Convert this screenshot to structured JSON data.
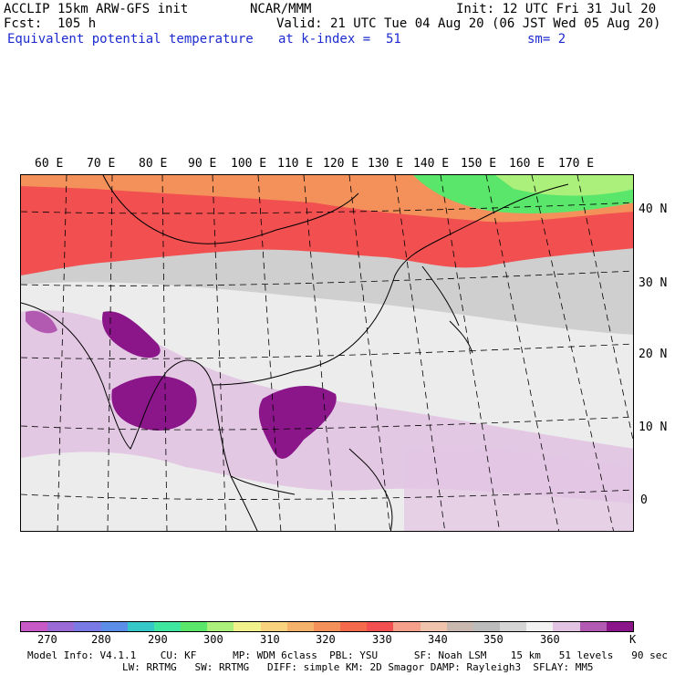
{
  "header": {
    "left": [
      "ACCLIP 15km ARW-GFS init",
      "Fcst:  105 h"
    ],
    "field": "Equivalent potential temperature",
    "center_top": "NCAR/MMM",
    "init": "Init: 12 UTC Fri 31 Jul 20",
    "valid": "Valid: 21 UTC Tue 04 Aug 20 (06 JST Wed 05 Aug 20)",
    "level": "at k-index =  51",
    "smooth": "sm= 2"
  },
  "map": {
    "lon_labels": [
      "60 E",
      "70 E",
      "80 E",
      "90 E",
      "100 E",
      "110 E",
      "120 E",
      "130 E",
      "140 E",
      "150 E",
      "160 E",
      "170 E"
    ],
    "lat_labels": [
      "40 N",
      "30 N",
      "20 N",
      "10 N",
      "0"
    ]
  },
  "colorbar": {
    "colors": [
      "#c85ac8",
      "#9a6ad6",
      "#7a7ae6",
      "#5a8ee8",
      "#36c8c8",
      "#3ee6a0",
      "#5ae66a",
      "#aaf07a",
      "#f2f28c",
      "#f8d27c",
      "#f4b26a",
      "#f4905a",
      "#f46a4a",
      "#f25050",
      "#f4a08a",
      "#f0c4ac",
      "#c8b8b0",
      "#bcbcbc",
      "#d4d4d4",
      "#f2f2f2",
      "#e2c4e2",
      "#b25ab2",
      "#8a168a"
    ],
    "labels": [
      "270",
      "280",
      "290",
      "300",
      "310",
      "320",
      "330",
      "340",
      "350",
      "360"
    ],
    "unit": "K"
  },
  "footer": {
    "line1": "Model Info: V4.1.1    CU: KF      MP: WDM 6class  PBL: YSU      SF: Noah LSM    15 km   51 levels   90 sec",
    "line2": "LW: RRTMG   SW: RRTMG   DIFF: simple KM: 2D Smagor DAMP: Rayleigh3  SFLAY: MM5"
  }
}
